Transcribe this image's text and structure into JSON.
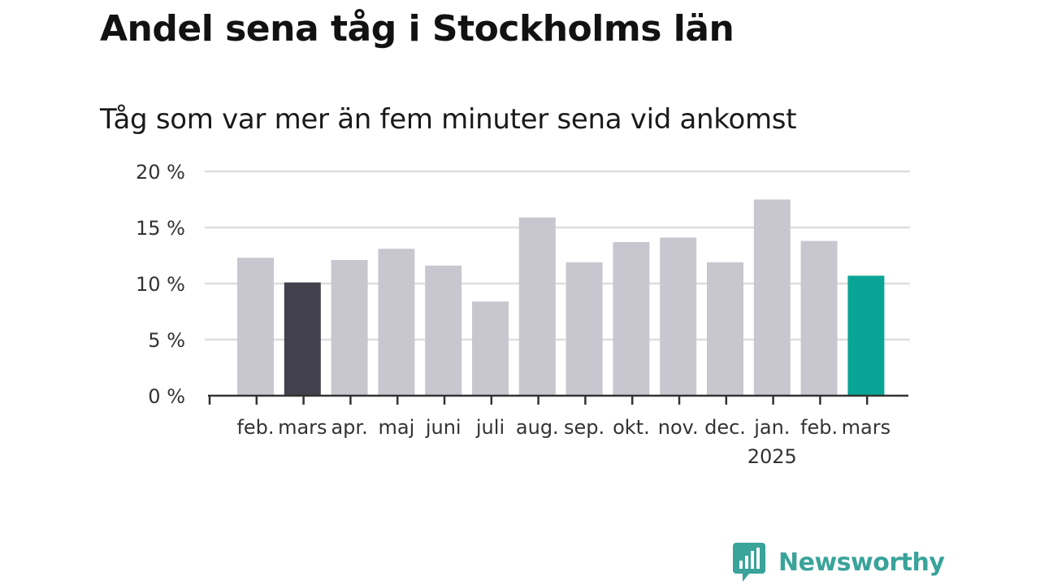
{
  "header": {
    "title": "Andel sena tåg i Stockholms län",
    "subtitle": "Tåg som var mer än fem minuter sena vid ankomst"
  },
  "brand": {
    "name": "Newsworthy",
    "icon": "newsworthy-logo-icon",
    "color": "#3aa39a"
  },
  "chart_data": {
    "type": "bar",
    "title": "Andel sena tåg i Stockholms län",
    "subtitle": "Tåg som var mer än fem minuter sena vid ankomst",
    "xlabel": "",
    "ylabel": "",
    "ylim": [
      0,
      20
    ],
    "yticks": [
      0,
      5,
      10,
      15,
      20
    ],
    "ytick_labels": [
      "0 %",
      "5 %",
      "10 %",
      "15 %",
      "20 %"
    ],
    "grid": true,
    "categories": [
      "feb.",
      "mars",
      "apr.",
      "maj",
      "juni",
      "juli",
      "aug.",
      "sep.",
      "okt.",
      "nov.",
      "dec.",
      "jan.",
      "feb.",
      "mars"
    ],
    "year_label": {
      "category_index": 11,
      "text": "2025"
    },
    "values": [
      12.3,
      10.1,
      12.1,
      13.1,
      11.6,
      8.4,
      15.9,
      11.9,
      13.7,
      14.1,
      11.9,
      17.5,
      13.8,
      10.7
    ],
    "colors": {
      "default": "#c8c7cf",
      "last_year_same_month": "#43414d",
      "current": "#0aa497",
      "grid": "#dddddd",
      "axis": "#333333"
    },
    "highlight": {
      "last_year_same_month_index": 1,
      "current_index": 13
    }
  }
}
